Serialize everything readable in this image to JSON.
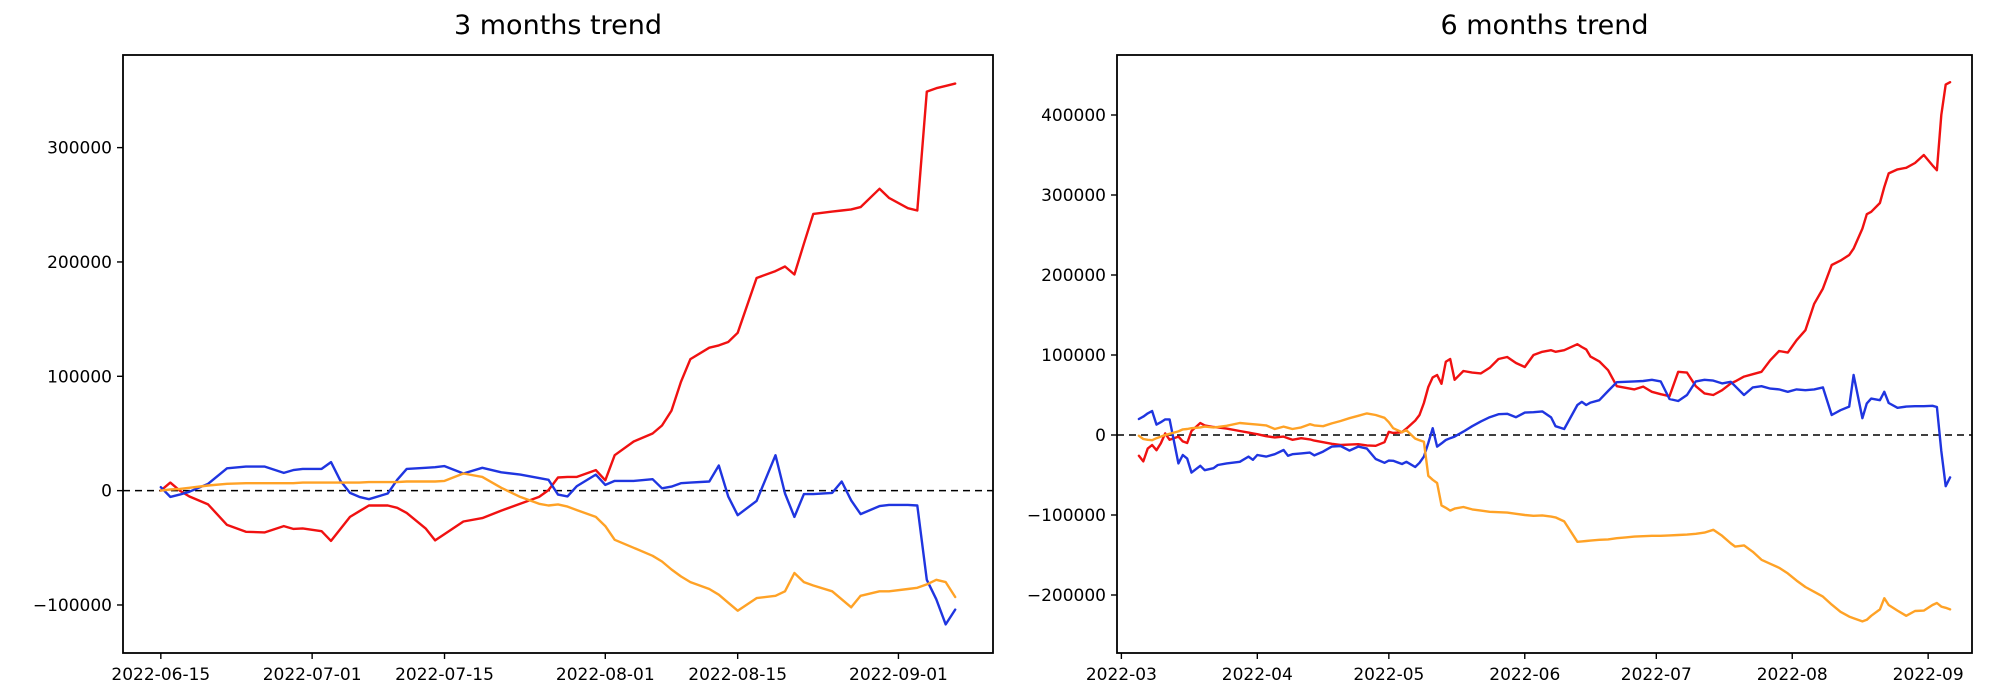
{
  "figure": {
    "background": "#ffffff",
    "text_color": "#000000"
  },
  "chart_data": [
    {
      "type": "line",
      "title": "3 months trend",
      "grid": false,
      "legend": "none",
      "zero_line": {
        "style": "dashed",
        "color": "#000000",
        "y": 0
      },
      "xlim": [
        "2022-06-11",
        "2022-09-11"
      ],
      "ylim": [
        -142000,
        381000
      ],
      "x_ticks": [
        {
          "date": "2022-06-15",
          "label": "2022-06-15"
        },
        {
          "date": "2022-07-01",
          "label": "2022-07-01"
        },
        {
          "date": "2022-07-15",
          "label": "2022-07-15"
        },
        {
          "date": "2022-08-01",
          "label": "2022-08-01"
        },
        {
          "date": "2022-08-15",
          "label": "2022-08-15"
        },
        {
          "date": "2022-09-01",
          "label": "2022-09-01"
        }
      ],
      "y_ticks": [
        {
          "value": -100000,
          "label": "−100000"
        },
        {
          "value": 0,
          "label": "0"
        },
        {
          "value": 100000,
          "label": "100000"
        },
        {
          "value": 200000,
          "label": "200000"
        },
        {
          "value": 300000,
          "label": "300000"
        }
      ],
      "dates": [
        "2022-06-15",
        "2022-06-16",
        "2022-06-17",
        "2022-06-18",
        "2022-06-20",
        "2022-06-22",
        "2022-06-24",
        "2022-06-26",
        "2022-06-28",
        "2022-06-29",
        "2022-06-30",
        "2022-07-02",
        "2022-07-03",
        "2022-07-04",
        "2022-07-05",
        "2022-07-06",
        "2022-07-07",
        "2022-07-09",
        "2022-07-10",
        "2022-07-11",
        "2022-07-13",
        "2022-07-14",
        "2022-07-15",
        "2022-07-17",
        "2022-07-19",
        "2022-07-21",
        "2022-07-23",
        "2022-07-25",
        "2022-07-26",
        "2022-07-27",
        "2022-07-28",
        "2022-07-29",
        "2022-07-31",
        "2022-08-01",
        "2022-08-02",
        "2022-08-04",
        "2022-08-06",
        "2022-08-07",
        "2022-08-08",
        "2022-08-09",
        "2022-08-10",
        "2022-08-12",
        "2022-08-13",
        "2022-08-14",
        "2022-08-15",
        "2022-08-17",
        "2022-08-19",
        "2022-08-20",
        "2022-08-21",
        "2022-08-22",
        "2022-08-23",
        "2022-08-25",
        "2022-08-26",
        "2022-08-27",
        "2022-08-28",
        "2022-08-30",
        "2022-08-31",
        "2022-09-02",
        "2022-09-03",
        "2022-09-04",
        "2022-09-05",
        "2022-09-06",
        "2022-09-07"
      ],
      "series": [
        {
          "name": "red",
          "color": "#f01111",
          "values": [
            0,
            7000,
            0,
            -5000,
            -12000,
            -30000,
            -36000,
            -36500,
            -31000,
            -33500,
            -33000,
            -35500,
            -44000,
            -33500,
            -23000,
            -18000,
            -13000,
            -13000,
            -15000,
            -19500,
            -33000,
            -43500,
            -38000,
            -27000,
            -24000,
            -17500,
            -11500,
            -5500,
            500,
            11500,
            12000,
            12000,
            18000,
            9000,
            31000,
            43000,
            50000,
            57000,
            70000,
            95000,
            115000,
            125000,
            127000,
            130000,
            138000,
            186000,
            192000,
            196000,
            189000,
            216000,
            242000,
            244000,
            245000,
            246000,
            248000,
            264000,
            256000,
            247000,
            245000,
            349000,
            352000,
            354000,
            356000
          ]
        },
        {
          "name": "blue",
          "color": "#1f35e0",
          "values": [
            3000,
            -5500,
            -3500,
            -1000,
            6000,
            19500,
            21000,
            21000,
            15500,
            18000,
            19000,
            19000,
            25000,
            8500,
            -2000,
            -5500,
            -7500,
            -2500,
            9500,
            19000,
            20000,
            20500,
            21500,
            15000,
            20000,
            16000,
            14000,
            11000,
            9500,
            -3500,
            -5000,
            4000,
            14000,
            5000,
            8500,
            8500,
            10000,
            2000,
            3500,
            6500,
            7000,
            8000,
            22000,
            -5000,
            -21500,
            -9000,
            31000,
            -2500,
            -23000,
            -3000,
            -3000,
            -2000,
            8000,
            -8500,
            -20500,
            -13500,
            -12500,
            -12500,
            -13000,
            -78000,
            -95000,
            -117000,
            -104000
          ]
        },
        {
          "name": "orange",
          "color": "#ffa226",
          "values": [
            0,
            1000,
            1500,
            2500,
            4500,
            6000,
            6500,
            6500,
            6500,
            6500,
            7000,
            7000,
            7000,
            7000,
            7000,
            7000,
            7500,
            7500,
            7500,
            8000,
            8000,
            8000,
            8500,
            15000,
            12000,
            2500,
            -5500,
            -11500,
            -13000,
            -12000,
            -14000,
            -17000,
            -23000,
            -31000,
            -43000,
            -50000,
            -57000,
            -62000,
            -69000,
            -75000,
            -80000,
            -86000,
            -91000,
            -98000,
            -105000,
            -94000,
            -92000,
            -88000,
            -72000,
            -80000,
            -83000,
            -88000,
            -95000,
            -102000,
            -92000,
            -88000,
            -88000,
            -86000,
            -85000,
            -82000,
            -78000,
            -80000,
            -93000
          ]
        }
      ]
    },
    {
      "type": "line",
      "title": "6 months trend",
      "grid": false,
      "legend": "none",
      "zero_line": {
        "style": "dashed",
        "color": "#000000",
        "y": 0
      },
      "xlim": [
        "2022-02-28",
        "2022-09-11"
      ],
      "ylim": [
        -272500,
        475000
      ],
      "x_ticks": [
        {
          "date": "2022-03-01",
          "label": "2022-03"
        },
        {
          "date": "2022-04-01",
          "label": "2022-04"
        },
        {
          "date": "2022-05-01",
          "label": "2022-05"
        },
        {
          "date": "2022-06-01",
          "label": "2022-06"
        },
        {
          "date": "2022-07-01",
          "label": "2022-07"
        },
        {
          "date": "2022-08-01",
          "label": "2022-08"
        },
        {
          "date": "2022-09-01",
          "label": "2022-09"
        }
      ],
      "y_ticks": [
        {
          "value": -200000,
          "label": "−200000"
        },
        {
          "value": -100000,
          "label": "−100000"
        },
        {
          "value": 0,
          "label": "0"
        },
        {
          "value": 100000,
          "label": "100000"
        },
        {
          "value": 200000,
          "label": "200000"
        },
        {
          "value": 300000,
          "label": "300000"
        },
        {
          "value": 400000,
          "label": "400000"
        }
      ],
      "dates": [
        "2022-03-05",
        "2022-03-06",
        "2022-03-07",
        "2022-03-08",
        "2022-03-09",
        "2022-03-10",
        "2022-03-11",
        "2022-03-12",
        "2022-03-14",
        "2022-03-15",
        "2022-03-16",
        "2022-03-17",
        "2022-03-19",
        "2022-03-20",
        "2022-03-22",
        "2022-03-23",
        "2022-03-25",
        "2022-03-28",
        "2022-03-30",
        "2022-03-31",
        "2022-04-01",
        "2022-04-03",
        "2022-04-05",
        "2022-04-07",
        "2022-04-08",
        "2022-04-09",
        "2022-04-11",
        "2022-04-13",
        "2022-04-14",
        "2022-04-16",
        "2022-04-18",
        "2022-04-20",
        "2022-04-22",
        "2022-04-24",
        "2022-04-26",
        "2022-04-28",
        "2022-04-30",
        "2022-05-01",
        "2022-05-02",
        "2022-05-04",
        "2022-05-05",
        "2022-05-07",
        "2022-05-08",
        "2022-05-09",
        "2022-05-10",
        "2022-05-11",
        "2022-05-12",
        "2022-05-13",
        "2022-05-14",
        "2022-05-15",
        "2022-05-16",
        "2022-05-18",
        "2022-05-20",
        "2022-05-22",
        "2022-05-24",
        "2022-05-26",
        "2022-05-28",
        "2022-05-30",
        "2022-06-01",
        "2022-06-03",
        "2022-06-05",
        "2022-06-07",
        "2022-06-08",
        "2022-06-10",
        "2022-06-13",
        "2022-06-14",
        "2022-06-15",
        "2022-06-16",
        "2022-06-18",
        "2022-06-20",
        "2022-06-22",
        "2022-06-24",
        "2022-06-26",
        "2022-06-28",
        "2022-06-30",
        "2022-07-02",
        "2022-07-04",
        "2022-07-06",
        "2022-07-08",
        "2022-07-10",
        "2022-07-12",
        "2022-07-14",
        "2022-07-16",
        "2022-07-18",
        "2022-07-19",
        "2022-07-21",
        "2022-07-23",
        "2022-07-25",
        "2022-07-27",
        "2022-07-29",
        "2022-07-31",
        "2022-08-02",
        "2022-08-04",
        "2022-08-06",
        "2022-08-08",
        "2022-08-10",
        "2022-08-12",
        "2022-08-14",
        "2022-08-15",
        "2022-08-17",
        "2022-08-18",
        "2022-08-19",
        "2022-08-21",
        "2022-08-22",
        "2022-08-23",
        "2022-08-25",
        "2022-08-27",
        "2022-08-29",
        "2022-08-31",
        "2022-09-02",
        "2022-09-03",
        "2022-09-04",
        "2022-09-05",
        "2022-09-06"
      ],
      "series": [
        {
          "name": "red",
          "color": "#f01111",
          "values": [
            -26000,
            -33000,
            -17000,
            -12500,
            -19000,
            -10500,
            2000,
            -6000,
            -2000,
            -8000,
            -10000,
            5000,
            15000,
            12000,
            10000,
            9500,
            8000,
            5000,
            3000,
            2000,
            1000,
            -1500,
            -3000,
            -2000,
            -4000,
            -6000,
            -4000,
            -5500,
            -7000,
            -9000,
            -11000,
            -12500,
            -12000,
            -11500,
            -13000,
            -13500,
            -9000,
            4000,
            2500,
            3500,
            8000,
            18000,
            25000,
            40000,
            60000,
            72000,
            75000,
            64000,
            91500,
            95000,
            69000,
            80000,
            78000,
            77000,
            84000,
            95000,
            97500,
            90000,
            85000,
            100000,
            104000,
            106000,
            104000,
            106000,
            113500,
            110000,
            107000,
            98000,
            92000,
            81000,
            61000,
            59000,
            57000,
            60500,
            54000,
            51000,
            48500,
            79000,
            78000,
            61000,
            52000,
            50000,
            56000,
            64500,
            67000,
            73000,
            76000,
            79000,
            93500,
            105000,
            103000,
            118500,
            131000,
            164000,
            183000,
            212500,
            218000,
            225000,
            233000,
            258000,
            276000,
            279000,
            290000,
            310000,
            327000,
            332000,
            334000,
            340000,
            350000,
            337000,
            331000,
            400000,
            438000,
            441000
          ]
        },
        {
          "name": "blue",
          "color": "#1f35e0",
          "values": [
            20000,
            23000,
            27000,
            30000,
            13000,
            16000,
            19500,
            19500,
            -35500,
            -25000,
            -29500,
            -47000,
            -38500,
            -44000,
            -41500,
            -37500,
            -35500,
            -33500,
            -27000,
            -31000,
            -25000,
            -27000,
            -24000,
            -18750,
            -26000,
            -24000,
            -23000,
            -22000,
            -25500,
            -20750,
            -14500,
            -13750,
            -19500,
            -14500,
            -17000,
            -30000,
            -34750,
            -32000,
            -32250,
            -36250,
            -33500,
            -40000,
            -34750,
            -27000,
            -10000,
            8500,
            -14500,
            -10500,
            -6250,
            -4000,
            -2000,
            4250,
            11000,
            17000,
            22250,
            26000,
            26500,
            22250,
            28000,
            28500,
            29500,
            22000,
            11000,
            7500,
            37500,
            41500,
            37500,
            40500,
            43500,
            55000,
            66000,
            66500,
            67000,
            67500,
            69000,
            67000,
            45000,
            42500,
            50000,
            67000,
            69000,
            68000,
            64500,
            66500,
            61000,
            50000,
            59500,
            61000,
            58000,
            57000,
            54000,
            57000,
            56000,
            57000,
            59500,
            25000,
            31000,
            35500,
            75000,
            21000,
            39500,
            45500,
            43500,
            54000,
            40000,
            34000,
            35500,
            36000,
            36000,
            36500,
            35000,
            -20000,
            -64000,
            -53000
          ]
        },
        {
          "name": "orange",
          "color": "#ffa226",
          "values": [
            -1000,
            -5000,
            -6000,
            -6500,
            -4000,
            -2000,
            0,
            1500,
            4500,
            7000,
            7500,
            8500,
            9500,
            10500,
            9500,
            10000,
            11500,
            15000,
            14000,
            13500,
            13000,
            12000,
            7500,
            10500,
            9000,
            7500,
            9500,
            13500,
            12000,
            11000,
            14500,
            17500,
            21000,
            24000,
            27000,
            25000,
            21500,
            16000,
            8500,
            3500,
            6000,
            -4500,
            -6500,
            -8500,
            -51000,
            -56000,
            -60000,
            -88000,
            -91000,
            -94500,
            -92000,
            -90000,
            -93000,
            -94500,
            -96000,
            -96500,
            -97000,
            -98500,
            -100000,
            -101000,
            -100500,
            -102000,
            -103000,
            -108000,
            -133500,
            -133000,
            -132500,
            -132000,
            -131000,
            -130500,
            -129000,
            -128000,
            -127000,
            -126500,
            -126000,
            -126000,
            -125500,
            -125000,
            -124500,
            -123500,
            -122000,
            -118500,
            -126000,
            -135500,
            -139500,
            -138000,
            -146000,
            -156000,
            -161000,
            -166000,
            -173000,
            -182000,
            -190000,
            -196000,
            -202000,
            -212000,
            -221000,
            -227000,
            -229000,
            -233000,
            -231000,
            -226000,
            -218000,
            -204000,
            -212500,
            -219500,
            -226000,
            -220000,
            -219500,
            -212500,
            -210000,
            -214500,
            -216000,
            -218000
          ]
        }
      ]
    }
  ]
}
